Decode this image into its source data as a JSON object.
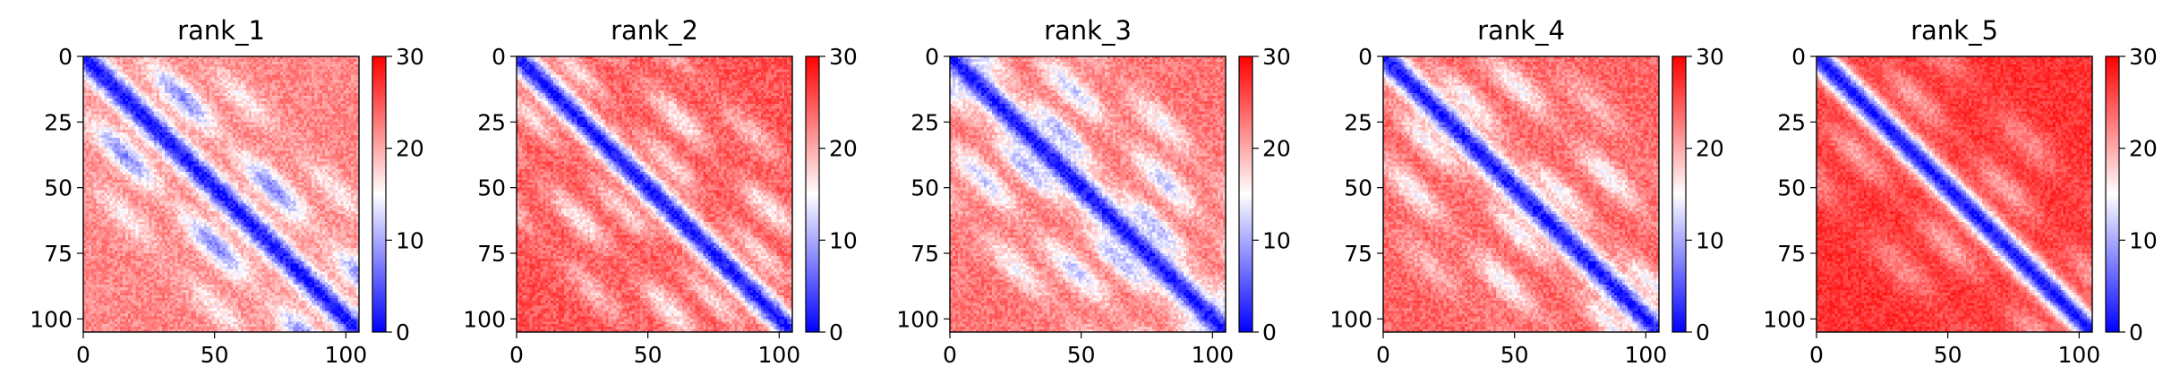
{
  "chart_data": [
    {
      "type": "heatmap",
      "title": "rank_1",
      "xlim": [
        0,
        105
      ],
      "ylim": [
        105,
        0
      ],
      "xticks": [
        0,
        50,
        100
      ],
      "yticks": [
        0,
        25,
        50,
        75,
        100
      ],
      "colorbar": {
        "min": 0,
        "max": 30,
        "ticks": [
          0,
          10,
          20,
          30
        ],
        "colormap": "bwr"
      },
      "pattern": {
        "base": 22,
        "diag_width": 5,
        "bands": [
          {
            "offset": 22,
            "depth": 14,
            "width": 5
          },
          {
            "offset": 45,
            "depth": 6,
            "width": 5
          }
        ],
        "noise": 5
      }
    },
    {
      "type": "heatmap",
      "title": "rank_2",
      "xlim": [
        0,
        105
      ],
      "ylim": [
        105,
        0
      ],
      "xticks": [
        0,
        50,
        100
      ],
      "yticks": [
        0,
        25,
        50,
        75,
        100
      ],
      "colorbar": {
        "min": 0,
        "max": 30,
        "ticks": [
          0,
          10,
          20,
          30
        ],
        "colormap": "bwr"
      },
      "pattern": {
        "base": 25,
        "diag_width": 5,
        "bands": [
          {
            "offset": 18,
            "depth": 8,
            "width": 4
          },
          {
            "offset": 38,
            "depth": 9,
            "width": 5
          },
          {
            "offset": 60,
            "depth": 6,
            "width": 5
          }
        ],
        "noise": 5
      }
    },
    {
      "type": "heatmap",
      "title": "rank_3",
      "xlim": [
        0,
        105
      ],
      "ylim": [
        105,
        0
      ],
      "xticks": [
        0,
        50,
        100
      ],
      "yticks": [
        0,
        25,
        50,
        75,
        100
      ],
      "colorbar": {
        "min": 0,
        "max": 30,
        "ticks": [
          0,
          10,
          20,
          30
        ],
        "colormap": "bwr"
      },
      "pattern": {
        "base": 23,
        "diag_width": 5,
        "bands": [
          {
            "offset": 14,
            "depth": 12,
            "width": 4
          },
          {
            "offset": 34,
            "depth": 11,
            "width": 5
          },
          {
            "offset": 55,
            "depth": 8,
            "width": 5
          }
        ],
        "noise": 5
      }
    },
    {
      "type": "heatmap",
      "title": "rank_4",
      "xlim": [
        0,
        105
      ],
      "ylim": [
        105,
        0
      ],
      "xticks": [
        0,
        50,
        100
      ],
      "yticks": [
        0,
        25,
        50,
        75,
        100
      ],
      "colorbar": {
        "min": 0,
        "max": 30,
        "ticks": [
          0,
          10,
          20,
          30
        ],
        "colormap": "bwr"
      },
      "pattern": {
        "base": 24,
        "diag_width": 5,
        "bands": [
          {
            "offset": 16,
            "depth": 9,
            "width": 4
          },
          {
            "offset": 40,
            "depth": 9,
            "width": 5
          },
          {
            "offset": 62,
            "depth": 5,
            "width": 5
          }
        ],
        "noise": 5
      }
    },
    {
      "type": "heatmap",
      "title": "rank_5",
      "xlim": [
        0,
        105
      ],
      "ylim": [
        105,
        0
      ],
      "xticks": [
        0,
        50,
        100
      ],
      "yticks": [
        0,
        25,
        50,
        75,
        100
      ],
      "colorbar": {
        "min": 0,
        "max": 30,
        "ticks": [
          0,
          10,
          20,
          30
        ],
        "colormap": "bwr"
      },
      "pattern": {
        "base": 27,
        "diag_width": 5,
        "bands": [
          {
            "offset": 22,
            "depth": 7,
            "width": 5
          },
          {
            "offset": 48,
            "depth": 5,
            "width": 6
          }
        ],
        "noise": 4
      }
    }
  ]
}
